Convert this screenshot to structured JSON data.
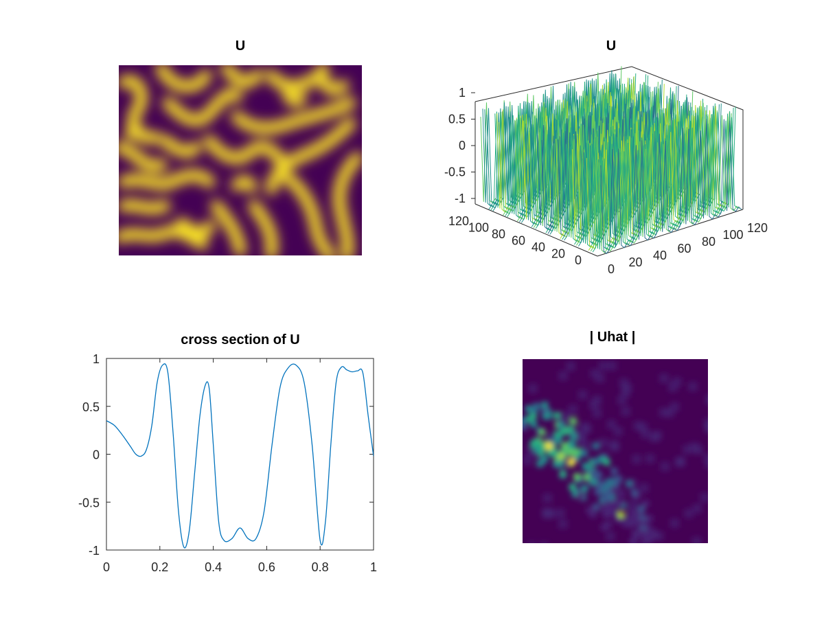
{
  "colors": {
    "colormap": [
      "#440154",
      "#482173",
      "#3b528b",
      "#2c718e",
      "#21908d",
      "#27ad81",
      "#5cc863",
      "#aadc32",
      "#fde725"
    ],
    "line": "#0072bd",
    "axis": "#262626"
  },
  "chart_data": [
    {
      "id": "pattern-image",
      "type": "heatmap",
      "title": "U",
      "colormap": "viridis",
      "description_value_range": [
        -1,
        1
      ]
    },
    {
      "id": "surface-3d",
      "type": "surface",
      "title": "U",
      "zticks": [
        "1",
        "0.5",
        "0",
        "-0.5",
        "-1"
      ],
      "zlim": [
        -1,
        1
      ],
      "yticks_left": [
        "120",
        "100",
        "80",
        "60",
        "40",
        "20",
        "0"
      ],
      "xticks_right": [
        "0",
        "20",
        "40",
        "60",
        "80",
        "100",
        "120"
      ],
      "colormap": "viridis"
    },
    {
      "id": "cross-section",
      "type": "line",
      "title": "cross section of U",
      "xlim": [
        0,
        1
      ],
      "ylim": [
        -1,
        1
      ],
      "xticks": [
        "0",
        "0.2",
        "0.4",
        "0.6",
        "0.8",
        "1"
      ],
      "yticks": [
        "1",
        "0.5",
        "0",
        "-0.5",
        "-1"
      ],
      "x": [
        0,
        0.03,
        0.06,
        0.09,
        0.11,
        0.13,
        0.15,
        0.17,
        0.19,
        0.21,
        0.23,
        0.25,
        0.27,
        0.29,
        0.31,
        0.33,
        0.35,
        0.37,
        0.385,
        0.4,
        0.42,
        0.44,
        0.47,
        0.5,
        0.53,
        0.56,
        0.59,
        0.62,
        0.65,
        0.68,
        0.71,
        0.74,
        0.77,
        0.8,
        0.82,
        0.84,
        0.86,
        0.88,
        0.9,
        0.92,
        0.94,
        0.96,
        0.98,
        1.0
      ],
      "y": [
        0.35,
        0.3,
        0.2,
        0.08,
        0.0,
        -0.02,
        0.05,
        0.3,
        0.75,
        0.93,
        0.85,
        0.2,
        -0.6,
        -0.97,
        -0.8,
        -0.2,
        0.4,
        0.72,
        0.68,
        0.1,
        -0.7,
        -0.9,
        -0.88,
        -0.77,
        -0.88,
        -0.88,
        -0.6,
        0.1,
        0.7,
        0.9,
        0.93,
        0.75,
        0.1,
        -0.9,
        -0.7,
        0.1,
        0.75,
        0.91,
        0.88,
        0.86,
        0.87,
        0.85,
        0.4,
        -0.02
      ]
    },
    {
      "id": "uhat",
      "type": "heatmap",
      "title": "| Uhat |",
      "colormap": "viridis"
    }
  ]
}
